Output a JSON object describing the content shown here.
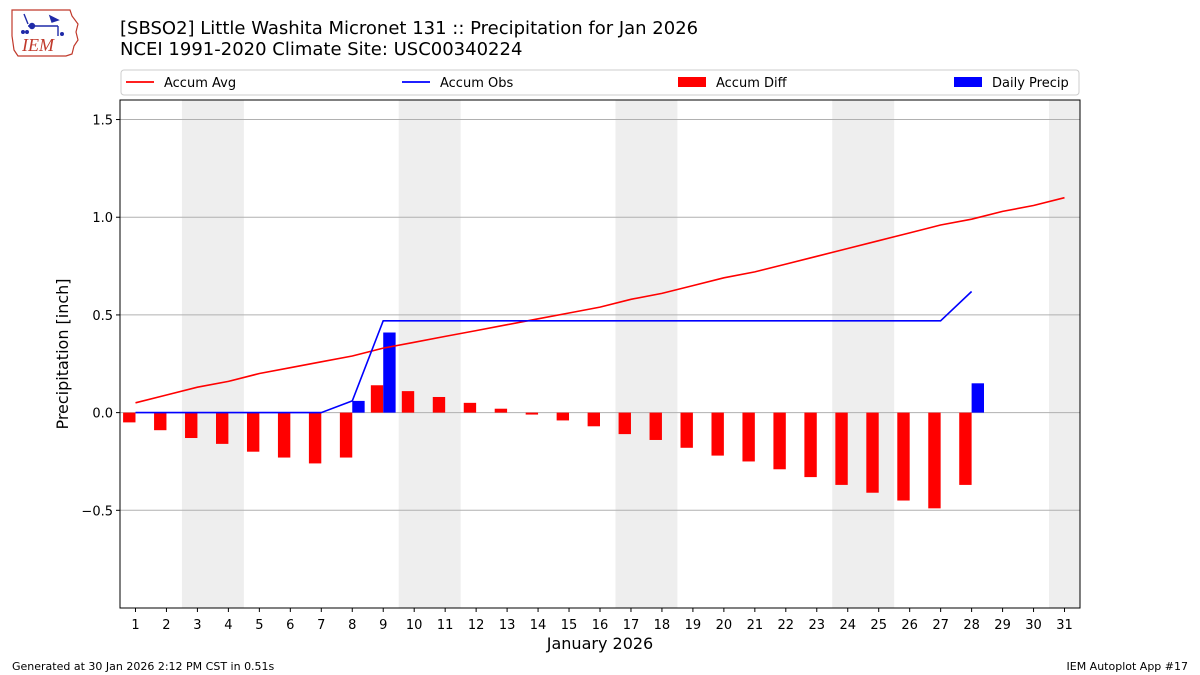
{
  "chart_data": {
    "type": "bar+line",
    "title_line1": "[SBSO2] Little Washita Micronet 131 :: Precipitation for Jan 2026",
    "title_line2": "NCEI 1991-2020 Climate Site: USC00340224",
    "xlabel": "January 2026",
    "ylabel": "Precipitation [inch]",
    "ylim": [
      -1.0,
      1.6
    ],
    "xlim": [
      0.5,
      31.5
    ],
    "yticks": [
      1.5,
      1.0,
      0.5,
      0.0,
      -0.5
    ],
    "ytick_labels": [
      "1.5",
      "1.0",
      "0.5",
      "0.0",
      "−0.5"
    ],
    "grid": "horizontal",
    "legend_position": "top",
    "weekend_shading": [
      [
        2.5,
        4.5
      ],
      [
        9.5,
        11.5
      ],
      [
        16.5,
        18.5
      ],
      [
        23.5,
        25.5
      ],
      [
        30.5,
        31.5
      ]
    ],
    "days": [
      1,
      2,
      3,
      4,
      5,
      6,
      7,
      8,
      9,
      10,
      11,
      12,
      13,
      14,
      15,
      16,
      17,
      18,
      19,
      20,
      21,
      22,
      23,
      24,
      25,
      26,
      27,
      28,
      29,
      30,
      31
    ],
    "series": [
      {
        "name": "Accum Avg",
        "kind": "line",
        "color": "#ff0000",
        "x": [
          1,
          2,
          3,
          4,
          5,
          6,
          7,
          8,
          9,
          10,
          11,
          12,
          13,
          14,
          15,
          16,
          17,
          18,
          19,
          20,
          21,
          22,
          23,
          24,
          25,
          26,
          27,
          28,
          29,
          30,
          31
        ],
        "values": [
          0.05,
          0.09,
          0.13,
          0.16,
          0.2,
          0.23,
          0.26,
          0.29,
          0.33,
          0.36,
          0.39,
          0.42,
          0.45,
          0.48,
          0.51,
          0.54,
          0.58,
          0.61,
          0.65,
          0.69,
          0.72,
          0.76,
          0.8,
          0.84,
          0.88,
          0.92,
          0.96,
          0.99,
          1.03,
          1.06,
          1.1
        ]
      },
      {
        "name": "Accum Obs",
        "kind": "line",
        "color": "#0000ff",
        "x": [
          1,
          2,
          3,
          4,
          5,
          6,
          7,
          8,
          9,
          10,
          11,
          12,
          13,
          14,
          15,
          16,
          17,
          18,
          19,
          20,
          21,
          22,
          23,
          24,
          25,
          26,
          27,
          28
        ],
        "values": [
          0,
          0,
          0,
          0,
          0,
          0,
          0,
          0.06,
          0.47,
          0.47,
          0.47,
          0.47,
          0.47,
          0.47,
          0.47,
          0.47,
          0.47,
          0.47,
          0.47,
          0.47,
          0.47,
          0.47,
          0.47,
          0.47,
          0.47,
          0.47,
          0.47,
          0.62
        ]
      },
      {
        "name": "Accum Diff",
        "kind": "bar",
        "color": "#ff0000",
        "x": [
          1,
          2,
          3,
          4,
          5,
          6,
          7,
          8,
          9,
          10,
          11,
          12,
          13,
          14,
          15,
          16,
          17,
          18,
          19,
          20,
          21,
          22,
          23,
          24,
          25,
          26,
          27,
          28
        ],
        "values": [
          -0.05,
          -0.09,
          -0.13,
          -0.16,
          -0.2,
          -0.23,
          -0.26,
          -0.23,
          0.14,
          0.11,
          0.08,
          0.05,
          0.02,
          -0.01,
          -0.04,
          -0.07,
          -0.11,
          -0.14,
          -0.18,
          -0.22,
          -0.25,
          -0.29,
          -0.33,
          -0.37,
          -0.41,
          -0.45,
          -0.49,
          -0.37
        ]
      },
      {
        "name": "Daily Precip",
        "kind": "bar",
        "color": "#0000ff",
        "x": [
          8,
          9,
          28
        ],
        "values": [
          0.06,
          0.41,
          0.15
        ]
      }
    ]
  },
  "logo": {
    "text": "IEM"
  },
  "footer": {
    "left": "Generated at 30 Jan 2026 2:12 PM CST in 0.51s",
    "right": "IEM Autoplot App #17"
  }
}
